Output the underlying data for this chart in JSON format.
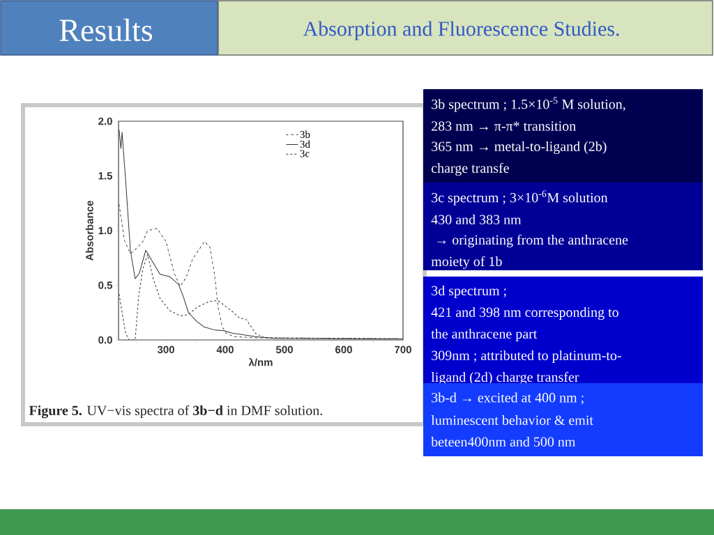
{
  "chart_data": {
    "type": "line",
    "title": "Results",
    "subtitle": "Absorption and Fluorescence Studies.",
    "xlabel": "λ/nm",
    "ylabel": "Absorbance",
    "xlim": [
      220,
      700
    ],
    "ylim": [
      0,
      2.0
    ],
    "xticks": [
      {
        "value": 250,
        "label": null
      },
      300,
      {
        "value": 350,
        "label": null
      },
      400,
      {
        "value": 450,
        "label": null
      },
      500,
      {
        "value": 550,
        "label": null
      },
      600,
      {
        "value": 650,
        "label": null
      },
      700
    ],
    "yticks": [
      {
        "value": 0,
        "label": "0.0"
      },
      {
        "value": 0.5,
        "label": "0.5"
      },
      {
        "value": 1.0,
        "label": "1.0"
      },
      {
        "value": 1.5,
        "label": "1.5"
      },
      {
        "value": 2.0,
        "label": "2.0"
      }
    ],
    "grid": false,
    "legend": "top right",
    "series": [
      {
        "name": "3b",
        "color": "#333333",
        "line_style": "dashdot",
        "x": [
          221,
          230,
          240,
          251,
          261,
          269,
          285,
          300,
          314,
          324,
          334,
          345,
          365,
          374,
          382,
          388,
          395,
          402,
          415,
          450,
          700
        ],
        "values": [
          1.24,
          0.91,
          0.79,
          0.84,
          0.9,
          1.0,
          1.02,
          0.9,
          0.61,
          0.49,
          0.57,
          0.74,
          0.9,
          0.85,
          0.6,
          0.3,
          0.12,
          0.06,
          0.03,
          0.02,
          0.01
        ]
      },
      {
        "name": "3d",
        "color": "#333333",
        "line_style": "solid",
        "x": [
          221,
          224,
          226,
          229,
          232,
          240,
          248,
          255,
          266,
          279,
          290,
          306,
          321,
          329,
          338,
          352,
          364,
          383,
          398,
          413,
          420,
          451,
          484,
          700
        ],
        "values": [
          1.92,
          1.75,
          1.9,
          1.67,
          1.46,
          0.82,
          0.56,
          0.61,
          0.82,
          0.7,
          0.6,
          0.58,
          0.51,
          0.4,
          0.25,
          0.17,
          0.12,
          0.09,
          0.085,
          0.06,
          0.055,
          0.03,
          0.015,
          0.01
        ]
      },
      {
        "name": "3c",
        "color": "#333333",
        "line_style": "dashed",
        "x": [
          221,
          226,
          232,
          238,
          248,
          254,
          261,
          269,
          279,
          290,
          306,
          324,
          337,
          353,
          372,
          388,
          412,
          424,
          435,
          451,
          467,
          700
        ],
        "values": [
          0.42,
          0.25,
          0.06,
          0.0,
          0.0,
          0.4,
          0.65,
          0.78,
          0.55,
          0.38,
          0.27,
          0.22,
          0.23,
          0.3,
          0.35,
          0.36,
          0.26,
          0.2,
          0.19,
          0.06,
          0.02,
          0.01
        ]
      }
    ],
    "annotations": [
      "**Figure 5.**  UV−vis spectra of **3b−d** in DMF solution.",
      "3b spectrum ;  1.5×10$^{-5}$ M solution,",
      "283 nm → π-π* transition",
      "365 nm → metal-to-ligand (2b)",
      "charge transfe",
      "3c spectrum ; 3×10$^{-6}$M solution",
      "430 and 383 nm",
      " → originating from the anthracene",
      "moiety of 1b",
      "3d spectrum ;",
      "421 and 398 nm corresponding to",
      "the anthracene part",
      "309nm ;  attributed to platinum-to-",
      "ligand (2d) charge transfer",
      "3b-d → excited at 400 nm ;",
      "luminescent behavior & emit",
      "beteen400nm and 500 nm"
    ]
  }
}
